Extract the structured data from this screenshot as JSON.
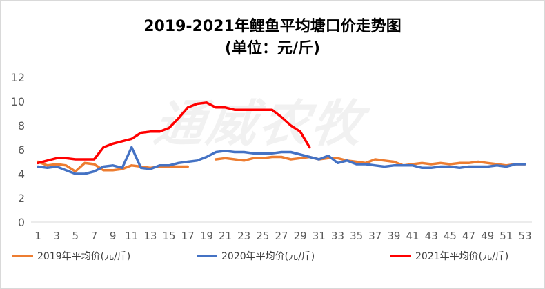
{
  "chart_data": {
    "type": "line",
    "title": "2019-2021年鲤鱼平均塘口价走势图",
    "subtitle": "(单位：元/斤)",
    "watermark": "通威农牧",
    "xlabel": "",
    "ylabel": "",
    "x": [
      1,
      2,
      3,
      4,
      5,
      6,
      7,
      8,
      9,
      10,
      11,
      12,
      13,
      14,
      15,
      16,
      17,
      18,
      19,
      20,
      21,
      22,
      23,
      24,
      25,
      26,
      27,
      28,
      29,
      30,
      31,
      32,
      33,
      34,
      35,
      36,
      37,
      38,
      39,
      40,
      41,
      42,
      43,
      44,
      45,
      46,
      47,
      48,
      49,
      50,
      51,
      52,
      53
    ],
    "x_tick_labels": [
      "1",
      "3",
      "5",
      "7",
      "9",
      "11",
      "13",
      "15",
      "17",
      "19",
      "21",
      "23",
      "25",
      "27",
      "29",
      "31",
      "33",
      "35",
      "37",
      "39",
      "41",
      "43",
      "45",
      "47",
      "49",
      "51",
      "53"
    ],
    "y_tick_labels": [
      "0",
      "2",
      "4",
      "6",
      "8",
      "10",
      "12"
    ],
    "ylim": [
      0,
      12
    ],
    "grid": false,
    "legend": "bottom",
    "series": [
      {
        "name": "2019年平均价(元/斤)",
        "color": "#ED7D31",
        "values": [
          5.0,
          4.7,
          4.8,
          4.7,
          4.2,
          4.9,
          4.8,
          4.3,
          4.3,
          4.4,
          4.7,
          4.6,
          4.5,
          4.6,
          4.6,
          4.6,
          4.6,
          null,
          null,
          5.2,
          5.3,
          5.2,
          5.1,
          5.3,
          5.3,
          5.4,
          5.4,
          5.2,
          5.3,
          5.4,
          5.2,
          5.3,
          5.3,
          5.1,
          5.0,
          4.9,
          5.2,
          5.1,
          5.0,
          4.7,
          4.8,
          4.9,
          4.8,
          4.9,
          4.8,
          4.9,
          4.9,
          5.0,
          4.9,
          4.8,
          4.7,
          4.8,
          4.8
        ]
      },
      {
        "name": "2020年平均价(元/斤)",
        "color": "#4472C4",
        "values": [
          4.6,
          4.5,
          4.6,
          4.3,
          4.0,
          4.0,
          4.2,
          4.6,
          4.7,
          4.5,
          6.2,
          4.5,
          4.4,
          4.7,
          4.7,
          4.9,
          5.0,
          5.1,
          5.4,
          5.8,
          5.9,
          5.8,
          5.8,
          5.7,
          5.7,
          5.7,
          5.8,
          5.8,
          5.6,
          5.4,
          5.2,
          5.5,
          4.9,
          5.1,
          4.8,
          4.8,
          4.7,
          4.6,
          4.7,
          4.7,
          4.7,
          4.5,
          4.5,
          4.6,
          4.6,
          4.5,
          4.6,
          4.6,
          4.6,
          4.7,
          4.6,
          4.8,
          4.8
        ]
      },
      {
        "name": "2021年平均价(元/斤)",
        "color": "#FF0000",
        "values": [
          4.9,
          5.1,
          5.3,
          5.3,
          5.2,
          5.2,
          5.2,
          6.2,
          6.5,
          6.7,
          6.9,
          7.4,
          7.5,
          7.5,
          7.8,
          8.6,
          9.5,
          9.8,
          9.9,
          9.5,
          9.5,
          9.3,
          9.3,
          9.3,
          9.3,
          9.3,
          8.7,
          8.0,
          7.5,
          6.2,
          null,
          null,
          null,
          null,
          null,
          null,
          null,
          null,
          null,
          null,
          null,
          null,
          null,
          null,
          null,
          null,
          null,
          null,
          null,
          null,
          null,
          null,
          null
        ]
      }
    ]
  }
}
